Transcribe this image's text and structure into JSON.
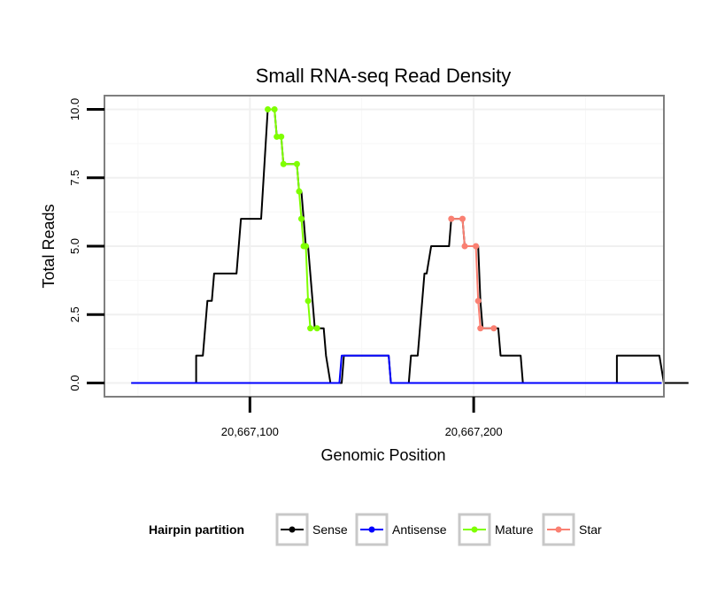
{
  "chart_data": {
    "type": "line",
    "title": "Small RNA-seq Read Density",
    "xlabel": "Genomic Position",
    "ylabel": "Total Reads",
    "xlim": [
      20667035,
      20667285
    ],
    "ylim": [
      -0.5,
      10.5
    ],
    "x_ticks": [
      {
        "value": 20667100,
        "label": "20,667,100"
      },
      {
        "value": 20667200,
        "label": "20,667,200"
      }
    ],
    "y_ticks": [
      {
        "value": 0,
        "label": "0.0"
      },
      {
        "value": 2.5,
        "label": "2.5"
      },
      {
        "value": 5,
        "label": "5.0"
      },
      {
        "value": 7.5,
        "label": "7.5"
      },
      {
        "value": 10,
        "label": "10.0"
      }
    ],
    "grid": true,
    "legend": {
      "title": "Hairpin partition",
      "position": "bottom",
      "items": [
        {
          "name": "Sense",
          "color": "#000000"
        },
        {
          "name": "Antisense",
          "color": "#0000ff"
        },
        {
          "name": "Mature",
          "color": "#7fff00"
        },
        {
          "name": "Star",
          "color": "#fa8072"
        }
      ]
    },
    "series": [
      {
        "name": "Sense",
        "color": "#000000",
        "points": [
          [
            20667047,
            0
          ],
          [
            20667076,
            0
          ],
          [
            20667076,
            1
          ],
          [
            20667079,
            1
          ],
          [
            20667081,
            3
          ],
          [
            20667083,
            3
          ],
          [
            20667084,
            4
          ],
          [
            20667094,
            4
          ],
          [
            20667096,
            6
          ],
          [
            20667105,
            6
          ],
          [
            20667108,
            10
          ],
          [
            20667111,
            10
          ],
          [
            20667112,
            9
          ],
          [
            20667114,
            9
          ],
          [
            20667115,
            8
          ],
          [
            20667121,
            8
          ],
          [
            20667122,
            7
          ],
          [
            20667123,
            7
          ],
          [
            20667124,
            6
          ],
          [
            20667125,
            5
          ],
          [
            20667126,
            5
          ],
          [
            20667128,
            3
          ],
          [
            20667129,
            2
          ],
          [
            20667133,
            2
          ],
          [
            20667134,
            1
          ],
          [
            20667136,
            0
          ],
          [
            20667141,
            0
          ],
          [
            20667142,
            1
          ],
          [
            20667162,
            1
          ],
          [
            20667163,
            0
          ],
          [
            20667171,
            0
          ],
          [
            20667172,
            1
          ],
          [
            20667175,
            1
          ],
          [
            20667178,
            4
          ],
          [
            20667179,
            4
          ],
          [
            20667181,
            5
          ],
          [
            20667189,
            5
          ],
          [
            20667190,
            6
          ],
          [
            20667195,
            6
          ],
          [
            20667196,
            5
          ],
          [
            20667202,
            5
          ],
          [
            20667203,
            3
          ],
          [
            20667204,
            2
          ],
          [
            20667211,
            2
          ],
          [
            20667212,
            1
          ],
          [
            20667221,
            1
          ],
          [
            20667222,
            0
          ],
          [
            20667264,
            0
          ],
          [
            20667264,
            1
          ],
          [
            20667283,
            1
          ],
          [
            20667285,
            0
          ],
          [
            20667296,
            0
          ]
        ]
      },
      {
        "name": "Antisense",
        "color": "#0000ff",
        "points": [
          [
            20667047,
            0
          ],
          [
            20667140,
            0
          ],
          [
            20667141,
            1
          ],
          [
            20667162,
            1
          ],
          [
            20667163,
            0
          ],
          [
            20667284,
            0
          ]
        ]
      },
      {
        "name": "Mature",
        "color": "#7fff00",
        "points": [
          [
            20667108,
            10
          ],
          [
            20667111,
            10
          ],
          [
            20667112,
            9
          ],
          [
            20667114,
            9
          ],
          [
            20667115,
            8
          ],
          [
            20667121,
            8
          ],
          [
            20667122,
            7
          ],
          [
            20667123,
            6
          ],
          [
            20667124,
            5
          ],
          [
            20667125,
            5
          ],
          [
            20667126,
            3
          ],
          [
            20667127,
            2
          ],
          [
            20667130,
            2
          ]
        ]
      },
      {
        "name": "Star",
        "color": "#fa8072",
        "points": [
          [
            20667190,
            6
          ],
          [
            20667195,
            6
          ],
          [
            20667196,
            5
          ],
          [
            20667201,
            5
          ],
          [
            20667202,
            3
          ],
          [
            20667203,
            2
          ],
          [
            20667209,
            2
          ]
        ]
      }
    ]
  }
}
